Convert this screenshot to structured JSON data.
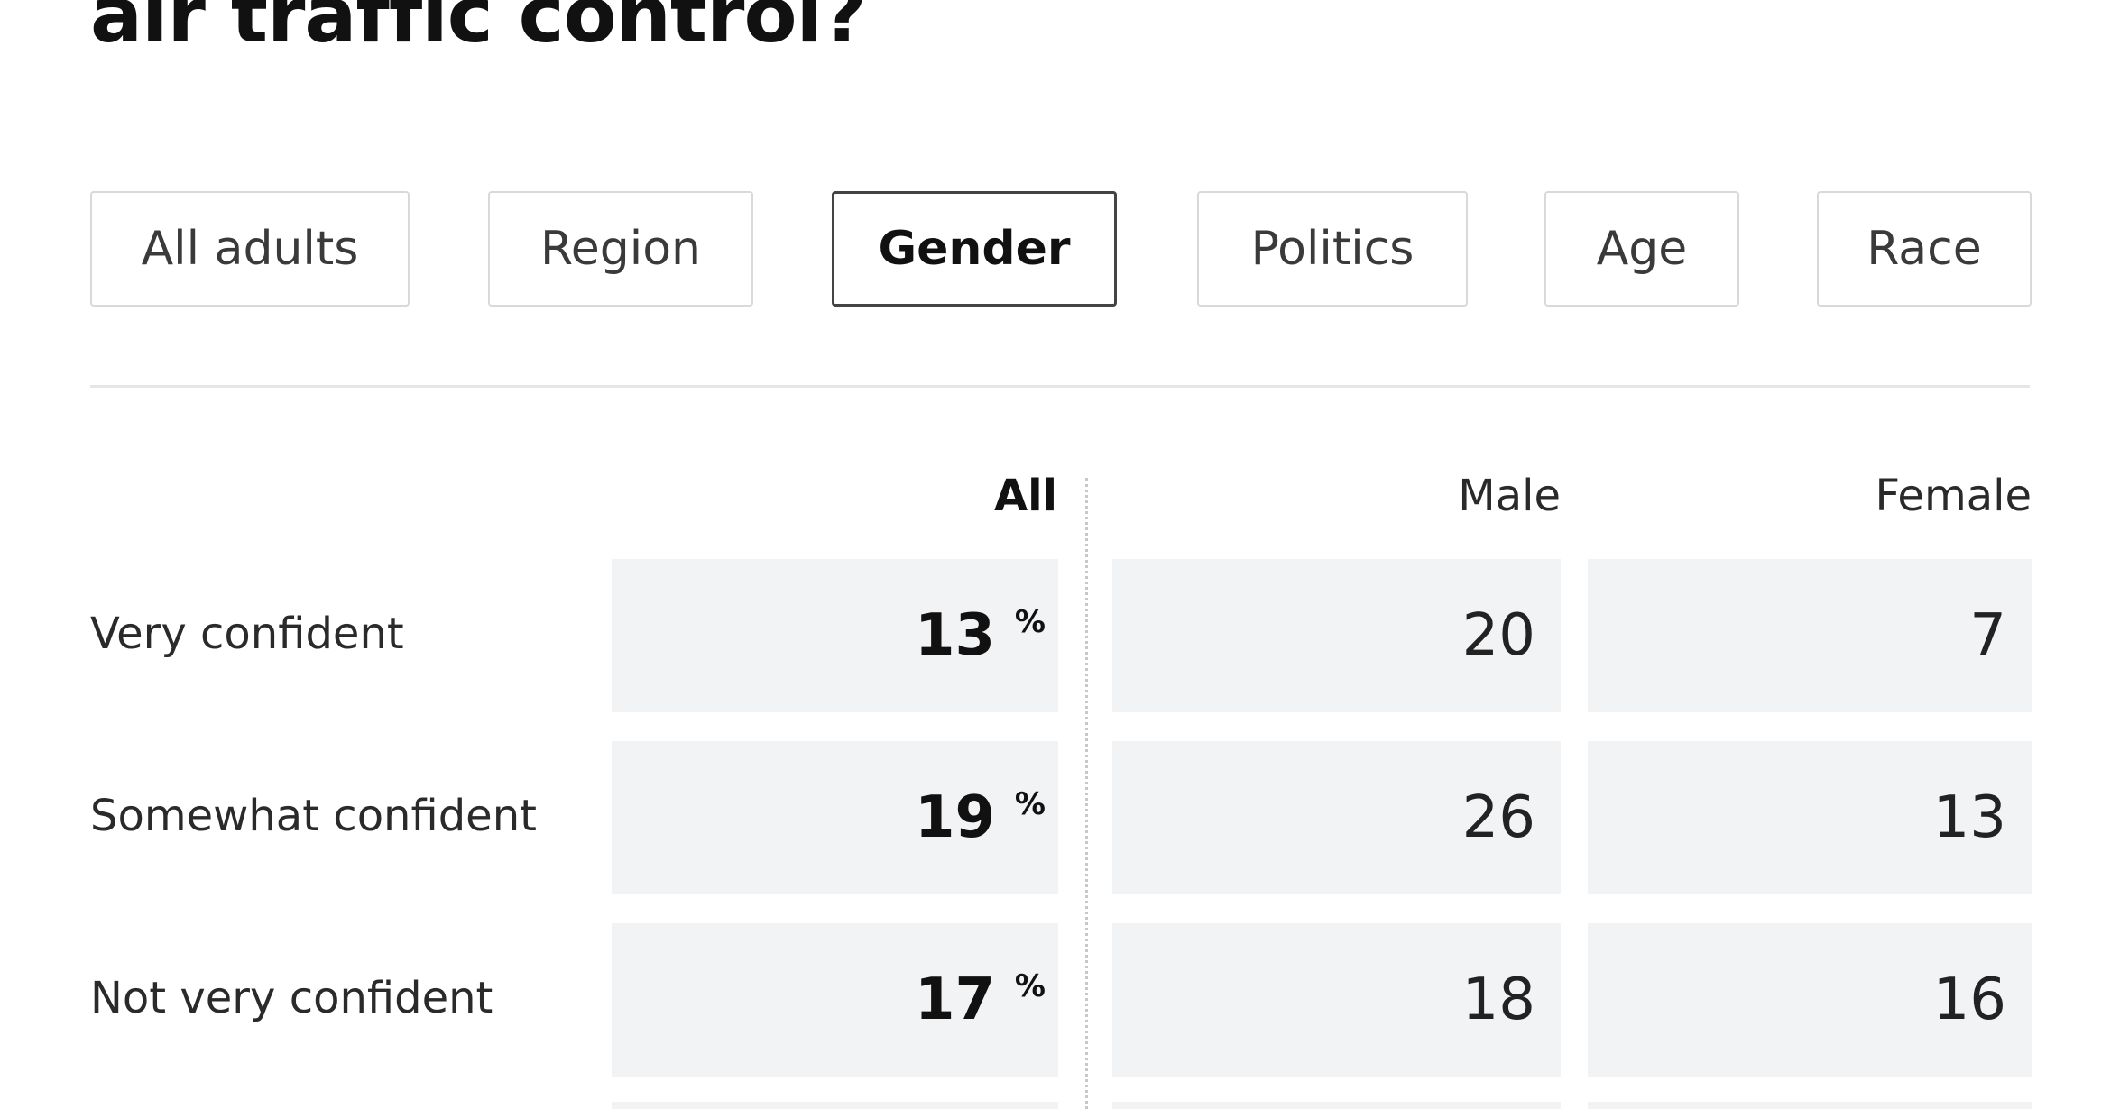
{
  "title": "air traffic control?",
  "tabs": [
    {
      "label": "All adults",
      "active": false
    },
    {
      "label": "Region",
      "active": false
    },
    {
      "label": "Gender",
      "active": true
    },
    {
      "label": "Politics",
      "active": false
    },
    {
      "label": "Age",
      "active": false
    },
    {
      "label": "Race",
      "active": false
    }
  ],
  "columns": {
    "all": "All",
    "male": "Male",
    "female": "Female"
  },
  "percent_symbol": "%",
  "rows": [
    {
      "label": "Very confident",
      "all": "13",
      "male": "20",
      "female": "7"
    },
    {
      "label": "Somewhat confident",
      "all": "19",
      "male": "26",
      "female": "13"
    },
    {
      "label": "Not very confident",
      "all": "17",
      "male": "18",
      "female": "16"
    }
  ],
  "colors": {
    "cell_background": "#f2f3f5",
    "active_tab_border": "#444444",
    "tab_border": "#d9d9d9"
  }
}
